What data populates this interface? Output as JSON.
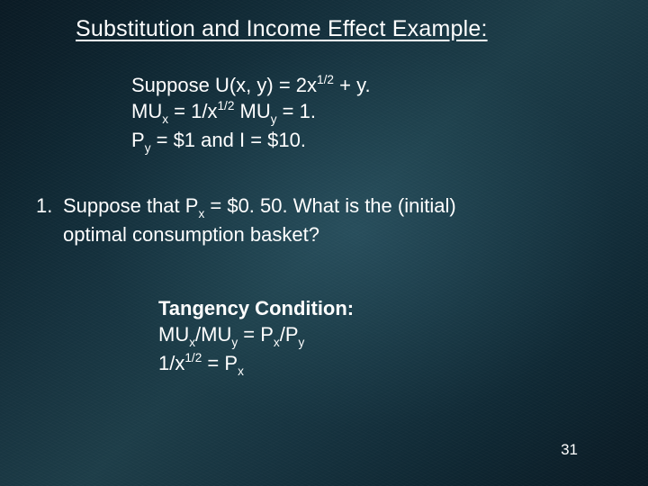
{
  "slide": {
    "background": {
      "gradient_colors": [
        "#0a1a24",
        "#0e2530",
        "#16323e",
        "#1d3d48"
      ],
      "highlight_color": "rgba(60,110,130,0.35)",
      "texture": "subtle-grain"
    },
    "text_color": "#ffffff",
    "font_family": "Verdana",
    "title_fontsize": 25,
    "body_fontsize": 22,
    "pagenum_fontsize": 17
  },
  "title": "Substitution and Income Effect Example:",
  "given": {
    "line1_pre": "Suppose U(x, y) = 2x",
    "line1_sup": "1/2",
    "line1_post": " + y.",
    "line2_a": "MU",
    "line2_a_sub": "x",
    "line2_b": " = 1/x",
    "line2_b_sup": "1/2",
    "line2_c": " MU",
    "line2_c_sub": "y",
    "line2_d": " = 1.",
    "line3_a": "P",
    "line3_a_sub": "y",
    "line3_b": " = $1 and I = $10."
  },
  "question": {
    "number": "1.",
    "text_a": "Suppose that P",
    "text_a_sub": "x",
    "text_b": " = $0. 50.  What is the (initial)",
    "text_c": "optimal consumption basket?"
  },
  "tangency": {
    "heading": "Tangency Condition:",
    "line1_a": "MU",
    "line1_a_sub": "x",
    "line1_b": "/MU",
    "line1_b_sub": "y",
    "line1_c": " = P",
    "line1_c_sub": "x",
    "line1_d": "/P",
    "line1_d_sub": "y",
    "line2_a": "1/x",
    "line2_a_sup": "1/2",
    "line2_b": " = P",
    "line2_b_sub": "x"
  },
  "page_number": "31"
}
